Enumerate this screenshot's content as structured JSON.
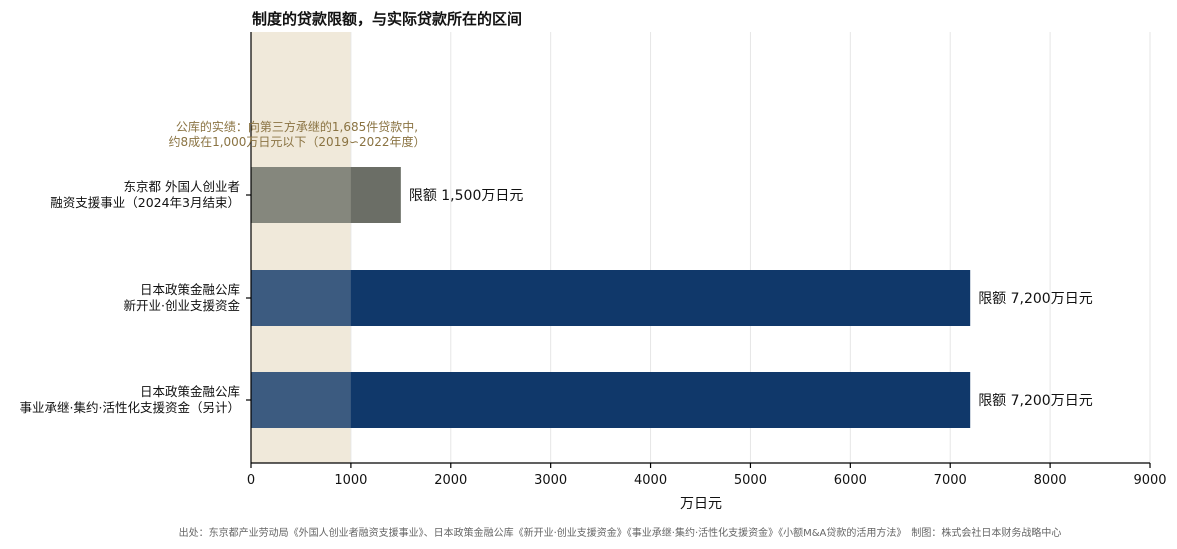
{
  "chart_data": {
    "type": "bar",
    "orientation": "horizontal",
    "title": "制度的贷款限额，与实际贷款所在的区间",
    "xlabel": "万日元",
    "xlim": [
      0,
      9000
    ],
    "xticks": [
      0,
      1000,
      2000,
      3000,
      4000,
      5000,
      6000,
      7000,
      8000,
      9000
    ],
    "grid": "vertical",
    "categories": [
      [
        "东京都 外国人创业者",
        "融资支援事业（2024年3月结束）"
      ],
      [
        "日本政策金融公库",
        "新开业·创业支援资金"
      ],
      [
        "日本政策金融公库",
        "事业承继·集约·活性化支援资金（另计）"
      ]
    ],
    "values": [
      1500,
      7200,
      7200
    ],
    "value_labels": [
      "限额 1,500万日元",
      "限额 7,200万日元",
      "限额 7,200万日元"
    ],
    "bar_colors": [
      "#6b6e66",
      "#10386a",
      "#10386a"
    ],
    "highlight_band": {
      "range": [
        0,
        1000
      ],
      "color": "#f1e9da",
      "annotation": [
        "公库的实绩：向第三方承继的1,685件贷款中,",
        "约8成在1,000万日元以下（2019∽2022年度）"
      ]
    },
    "source": "出处：东京都产业劳动局《外国人创业者融资支援事业》、日本政策金融公库《新开业·创业支援资金》《事业承继·集约·活性化支援资金》《小额M&A贷款的活用方法》　制图：株式会社日本财务战略中心"
  },
  "colors": {
    "annotation": "#8a7342",
    "band": "#f1e9da"
  }
}
